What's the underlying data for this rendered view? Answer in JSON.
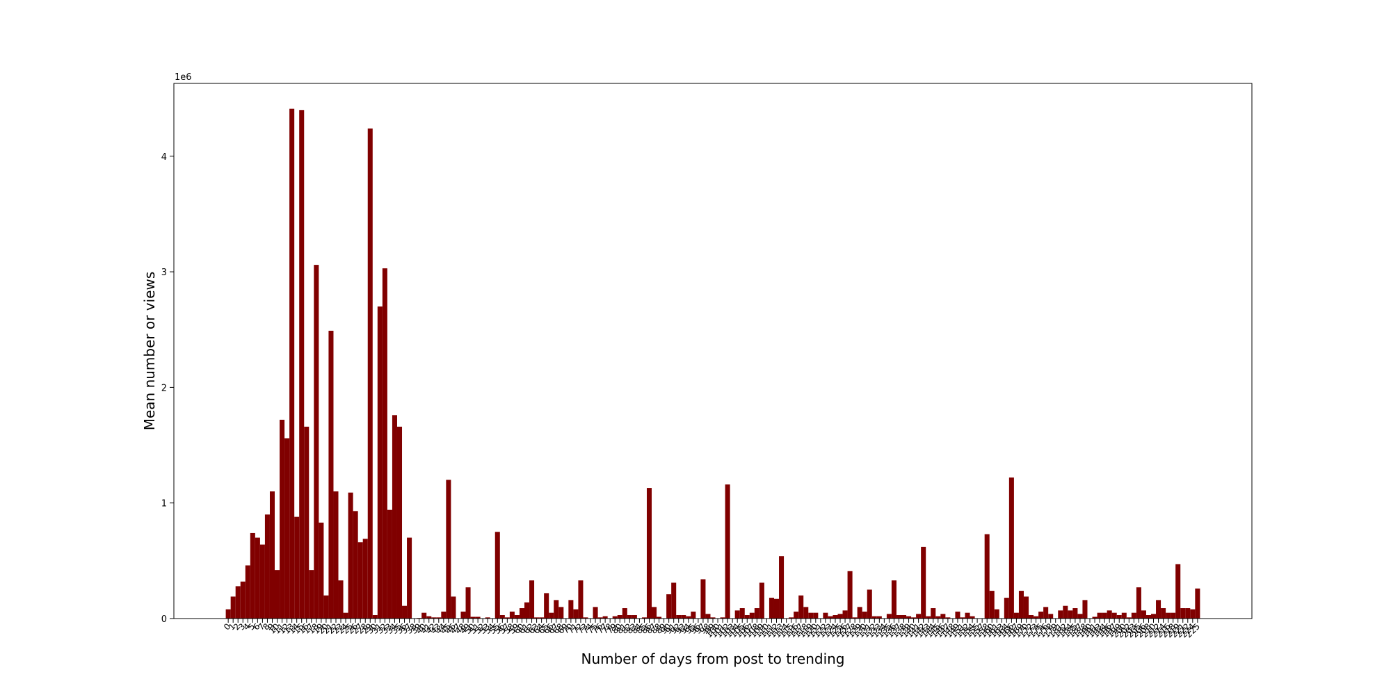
{
  "chart_data": {
    "type": "bar",
    "xlabel": "Number of days from post to trending",
    "ylabel": "Mean number or views",
    "y_offset_label": "1e6",
    "color": "#800000",
    "ylim": [
      0,
      4630000
    ],
    "yticks": [
      0,
      {
        "value": 1000000,
        "label": "1"
      },
      {
        "value": 2000000,
        "label": "2"
      },
      {
        "value": 3000000,
        "label": "3"
      },
      {
        "value": 4000000,
        "label": "4"
      }
    ],
    "categories": [
      0,
      1,
      2,
      3,
      4,
      5,
      6,
      7,
      8,
      9,
      10,
      11,
      12,
      13,
      14,
      15,
      16,
      17,
      18,
      19,
      20,
      21,
      22,
      23,
      24,
      25,
      26,
      27,
      28,
      29,
      30,
      31,
      32,
      33,
      34,
      35,
      36,
      37,
      38,
      39,
      40,
      41,
      42,
      43,
      44,
      45,
      46,
      47,
      48,
      49,
      50,
      51,
      52,
      53,
      54,
      55,
      56,
      57,
      58,
      59,
      60,
      61,
      62,
      63,
      64,
      65,
      66,
      67,
      68,
      69,
      70,
      71,
      72,
      73,
      74,
      75,
      76,
      77,
      78,
      79,
      80,
      81,
      82,
      83,
      84,
      85,
      86,
      87,
      88,
      89,
      90,
      91,
      92,
      93,
      94,
      95,
      96,
      97,
      98,
      99,
      100,
      101,
      102,
      103,
      104,
      105,
      106,
      107,
      108,
      109,
      110,
      111,
      112,
      113,
      114,
      115,
      116,
      117,
      118,
      119,
      120,
      121,
      122,
      123,
      124,
      125,
      126,
      127,
      128,
      129,
      130,
      131,
      132,
      133,
      134,
      135,
      136,
      137,
      138,
      139,
      140,
      141,
      142,
      143,
      144,
      145,
      146,
      147,
      148,
      149,
      151,
      152,
      154,
      155,
      157,
      158,
      160,
      161,
      163,
      164,
      166,
      167,
      169,
      170,
      172,
      173,
      175,
      176,
      178,
      179,
      181,
      182,
      184,
      185,
      187,
      188,
      190,
      191,
      193,
      194,
      196,
      197,
      199,
      200,
      202,
      203,
      205,
      206,
      208,
      210,
      212,
      214,
      216,
      218,
      219,
      221,
      222,
      224,
      225
    ],
    "values": [
      80000,
      190000,
      280000,
      320000,
      460000,
      740000,
      700000,
      640000,
      900000,
      1100000,
      420000,
      1720000,
      1560000,
      4410000,
      880000,
      4400000,
      1660000,
      420000,
      3060000,
      830000,
      200000,
      2490000,
      1100000,
      330000,
      50000,
      1090000,
      930000,
      660000,
      690000,
      4240000,
      30000,
      2700000,
      3030000,
      940000,
      1760000,
      1660000,
      110000,
      700000,
      0,
      5000,
      50000,
      20000,
      10000,
      10000,
      60000,
      1200000,
      190000,
      0,
      60000,
      270000,
      15000,
      15000,
      0,
      10000,
      0,
      750000,
      30000,
      10000,
      60000,
      30000,
      90000,
      140000,
      330000,
      10000,
      10000,
      220000,
      50000,
      160000,
      100000,
      0,
      160000,
      80000,
      330000,
      10000,
      0,
      100000,
      10000,
      20000,
      0,
      20000,
      30000,
      90000,
      30000,
      30000,
      0,
      10000,
      1130000,
      100000,
      15000,
      0,
      210000,
      310000,
      30000,
      30000,
      20000,
      60000,
      0,
      340000,
      40000,
      10000,
      0,
      10000,
      1160000,
      0,
      70000,
      90000,
      30000,
      50000,
      90000,
      310000,
      0,
      180000,
      170000,
      540000,
      0,
      10000,
      60000,
      200000,
      100000,
      50000,
      50000,
      0,
      50000,
      20000,
      30000,
      40000,
      70000,
      410000,
      10000,
      100000,
      60000,
      250000,
      20000,
      20000,
      0,
      40000,
      330000,
      30000,
      30000,
      20000,
      10000,
      40000,
      620000,
      20000,
      90000,
      20000,
      40000,
      10000,
      0,
      60000,
      10000,
      50000,
      20000,
      0,
      0,
      730000,
      240000,
      80000,
      0,
      180000,
      1220000,
      50000,
      240000,
      190000,
      30000,
      20000,
      60000,
      100000,
      40000,
      0,
      70000,
      110000,
      70000,
      90000,
      40000,
      160000,
      0,
      15000,
      50000,
      50000,
      70000,
      50000,
      30000,
      50000,
      10000,
      50000,
      270000,
      70000,
      30000,
      40000,
      160000,
      90000,
      50000,
      50000,
      470000,
      90000,
      90000,
      80000,
      260000
    ]
  }
}
